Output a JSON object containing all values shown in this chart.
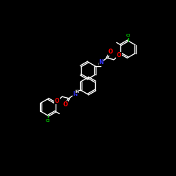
{
  "background": "#000000",
  "bond_color": "#ffffff",
  "atom_colors": {
    "O": "#ff0000",
    "N": "#3333ff",
    "Cl": "#00bb00",
    "C": "#ffffff"
  },
  "lw": 1.0,
  "figsize": [
    2.5,
    2.5
  ],
  "dpi": 100
}
